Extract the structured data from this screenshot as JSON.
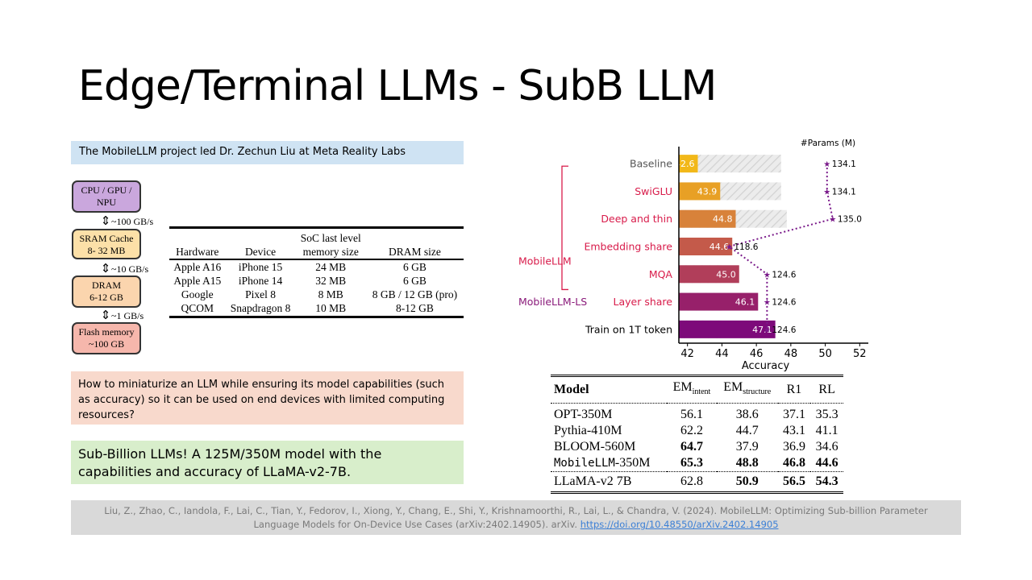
{
  "slide": {
    "title": "Edge/Terminal LLMs - SubB LLM",
    "intro": "The MobileLLM project led Dr. Zechun Liu at Meta Reality Labs",
    "question": "How to miniaturize an LLM while ensuring its model capabilities (such as accuracy) so it can be used on end devices with limited computing resources?",
    "answer": "Sub-Billion LLMs! A 125M/350M model with the capabilities and accuracy of LLaMA-v2-7B.",
    "citation": "Liu, Z., Zhao, C., Iandola, F., Lai, C., Tian, Y., Fedorov, I., Xiong, Y., Chang, E., Shi, Y., Krishnamoorthi, R., Lai, L., & Chandra, V. (2024). MobileLLM: Optimizing Sub-billion Parameter Language Models for On-Device Use Cases (arXiv:2402.14905). arXiv.",
    "citation_link": "https://doi.org/10.48550/arXiv.2402.14905"
  },
  "memory": {
    "cpu_line1": "CPU / GPU /",
    "cpu_line2": "NPU",
    "sram_line1": "SRAM Cache",
    "sram_line2": "8- 32 MB",
    "dram_line1": "DRAM",
    "dram_line2": "6-12 GB",
    "flash_line1": "Flash memory",
    "flash_line2": "~100 GB",
    "bw1": "~100 GB/s",
    "bw2": "~10 GB/s",
    "bw3": "~1 GB/s"
  },
  "hw_table": {
    "header_top": "SoC last level",
    "headers": [
      "Hardware",
      "Device",
      "memory size",
      "DRAM size"
    ],
    "rows": [
      [
        "Apple A16",
        "iPhone 15",
        "24 MB",
        "6 GB"
      ],
      [
        "Apple A15",
        "iPhone 14",
        "32 MB",
        "6 GB"
      ],
      [
        "Google",
        "Pixel 8",
        "8 MB",
        "8 GB / 12 GB (pro)"
      ],
      [
        "QCOM",
        "Snapdragon 8",
        "10 MB",
        "8-12 GB"
      ]
    ]
  },
  "chart_data": {
    "type": "bar",
    "orientation": "horizontal",
    "categories": [
      "Baseline",
      "SwiGLU",
      "Deep and thin",
      "Embedding share",
      "MQA",
      "Layer share",
      "Train on 1T token"
    ],
    "values": [
      42.6,
      43.9,
      44.8,
      44.6,
      45.0,
      46.1,
      47.1
    ],
    "params_series": {
      "name": "#Params (M)",
      "values": [
        134.1,
        134.1,
        135.0,
        118.6,
        124.6,
        124.6,
        124.6
      ]
    },
    "xlabel": "Accuracy",
    "xticks": [
      42,
      44,
      46,
      48,
      50,
      52
    ],
    "xlim": [
      41.5,
      52.5
    ],
    "group_labels": [
      "MobileLLM",
      "MobileLLM-LS"
    ],
    "bar_colors": [
      "#f2b819",
      "#e8a025",
      "#d8823a",
      "#c45a4a",
      "#b13e5a",
      "#97206a",
      "#7d0a7a"
    ],
    "label_colors": [
      "#555555",
      "#d81b4a",
      "#d81b4a",
      "#d81b4a",
      "#d81b4a",
      "#d81b4a",
      "#000000"
    ],
    "group_color_mobilellm": "#d81b4a",
    "group_color_ls": "#8a1a7a",
    "params_color": "#7a1a8a"
  },
  "results": {
    "headers": {
      "model": "Model",
      "em_intent": "EM",
      "em_intent_sub": "intent",
      "em_structure": "EM",
      "em_structure_sub": "structure",
      "r1": "R1",
      "rl": "RL"
    },
    "rows": [
      {
        "model": "OPT-350M",
        "em_intent": "56.1",
        "em_structure": "38.6",
        "r1": "37.1",
        "rl": "35.3"
      },
      {
        "model": "Pythia-410M",
        "em_intent": "62.2",
        "em_structure": "44.7",
        "r1": "43.1",
        "rl": "41.1"
      },
      {
        "model": "BLOOM-560M",
        "em_intent": "64.7",
        "em_structure": "37.9",
        "r1": "36.9",
        "rl": "34.6"
      },
      {
        "model_mono": "MobileLLM",
        "model_suffix": "-350M",
        "em_intent": "65.3",
        "em_structure": "48.8",
        "r1": "46.8",
        "rl": "44.6"
      },
      {
        "model": "LLaMA-v2 7B",
        "em_intent": "62.8",
        "em_structure": "50.9",
        "r1": "56.5",
        "rl": "54.3"
      }
    ]
  }
}
